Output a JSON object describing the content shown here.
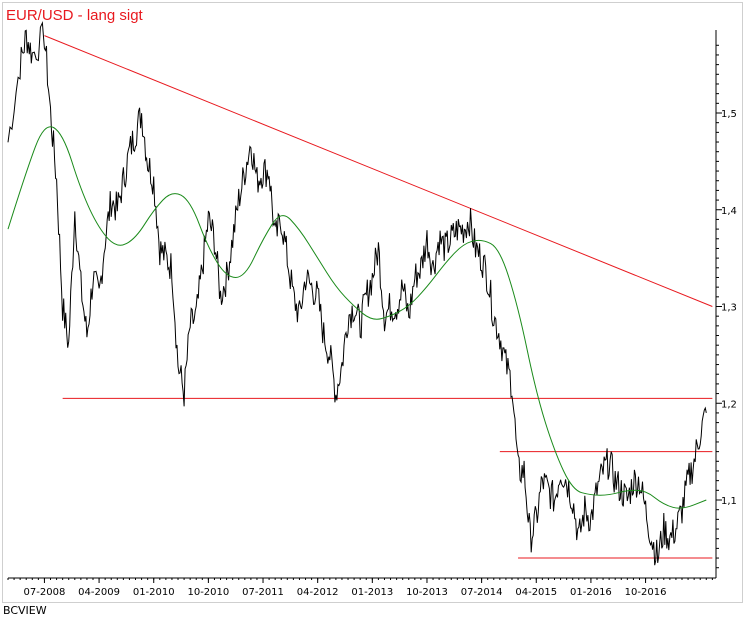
{
  "chart_data": {
    "type": "line",
    "title": "EUR/USD - lang sigt",
    "xlabel": "",
    "ylabel": "",
    "x_tick_labels": [
      "07-2008",
      "04-2009",
      "01-2010",
      "10-2010",
      "07-2011",
      "04-2012",
      "01-2013",
      "10-2013",
      "07-2014",
      "04-2015",
      "01-2016",
      "10-2016"
    ],
    "y_tick_labels": [
      "1,5",
      "1,4",
      "1,3",
      "1,2",
      "1,1"
    ],
    "y_tick_values": [
      1.5,
      1.4,
      1.3,
      1.2,
      1.1
    ],
    "ylim": [
      1.025,
      1.6
    ],
    "grid": false,
    "series": [
      {
        "role": "price",
        "color": "#000000",
        "points": [
          [
            "2008-01",
            1.47
          ],
          [
            "2008-03",
            1.55
          ],
          [
            "2008-04",
            1.58
          ],
          [
            "2008-05",
            1.56
          ],
          [
            "2008-07",
            1.58
          ],
          [
            "2008-08",
            1.5
          ],
          [
            "2008-09",
            1.43
          ],
          [
            "2008-10",
            1.3
          ],
          [
            "2008-11",
            1.26
          ],
          [
            "2008-12",
            1.4
          ],
          [
            "2009-01",
            1.32
          ],
          [
            "2009-02",
            1.27
          ],
          [
            "2009-03",
            1.33
          ],
          [
            "2009-04",
            1.31
          ],
          [
            "2009-05",
            1.37
          ],
          [
            "2009-06",
            1.41
          ],
          [
            "2009-07",
            1.4
          ],
          [
            "2009-08",
            1.43
          ],
          [
            "2009-09",
            1.46
          ],
          [
            "2009-10",
            1.48
          ],
          [
            "2009-11",
            1.5
          ],
          [
            "2009-12",
            1.45
          ],
          [
            "2010-01",
            1.43
          ],
          [
            "2010-02",
            1.36
          ],
          [
            "2010-03",
            1.35
          ],
          [
            "2010-04",
            1.34
          ],
          [
            "2010-05",
            1.24
          ],
          [
            "2010-06",
            1.21
          ],
          [
            "2010-07",
            1.28
          ],
          [
            "2010-08",
            1.29
          ],
          [
            "2010-09",
            1.34
          ],
          [
            "2010-10",
            1.39
          ],
          [
            "2010-11",
            1.37
          ],
          [
            "2010-12",
            1.31
          ],
          [
            "2011-01",
            1.33
          ],
          [
            "2011-02",
            1.37
          ],
          [
            "2011-03",
            1.41
          ],
          [
            "2011-04",
            1.44
          ],
          [
            "2011-05",
            1.47
          ],
          [
            "2011-06",
            1.43
          ],
          [
            "2011-07",
            1.44
          ],
          [
            "2011-08",
            1.44
          ],
          [
            "2011-09",
            1.37
          ],
          [
            "2011-10",
            1.39
          ],
          [
            "2011-11",
            1.35
          ],
          [
            "2011-12",
            1.31
          ],
          [
            "2012-01",
            1.29
          ],
          [
            "2012-02",
            1.33
          ],
          [
            "2012-03",
            1.32
          ],
          [
            "2012-04",
            1.31
          ],
          [
            "2012-05",
            1.27
          ],
          [
            "2012-06",
            1.25
          ],
          [
            "2012-07",
            1.21
          ],
          [
            "2012-08",
            1.24
          ],
          [
            "2012-09",
            1.29
          ],
          [
            "2012-10",
            1.3
          ],
          [
            "2012-11",
            1.28
          ],
          [
            "2012-12",
            1.31
          ],
          [
            "2013-01",
            1.33
          ],
          [
            "2013-02",
            1.36
          ],
          [
            "2013-03",
            1.29
          ],
          [
            "2013-04",
            1.3
          ],
          [
            "2013-05",
            1.3
          ],
          [
            "2013-06",
            1.32
          ],
          [
            "2013-07",
            1.29
          ],
          [
            "2013-08",
            1.33
          ],
          [
            "2013-09",
            1.34
          ],
          [
            "2013-10",
            1.37
          ],
          [
            "2013-11",
            1.34
          ],
          [
            "2013-12",
            1.37
          ],
          [
            "2014-01",
            1.36
          ],
          [
            "2014-02",
            1.37
          ],
          [
            "2014-03",
            1.38
          ],
          [
            "2014-04",
            1.38
          ],
          [
            "2014-05",
            1.39
          ],
          [
            "2014-06",
            1.36
          ],
          [
            "2014-07",
            1.35
          ],
          [
            "2014-08",
            1.33
          ],
          [
            "2014-09",
            1.29
          ],
          [
            "2014-10",
            1.27
          ],
          [
            "2014-11",
            1.24
          ],
          [
            "2014-12",
            1.22
          ],
          [
            "2015-01",
            1.13
          ],
          [
            "2015-02",
            1.13
          ],
          [
            "2015-03",
            1.06
          ],
          [
            "2015-04",
            1.08
          ],
          [
            "2015-05",
            1.12
          ],
          [
            "2015-06",
            1.11
          ],
          [
            "2015-07",
            1.1
          ],
          [
            "2015-08",
            1.13
          ],
          [
            "2015-09",
            1.12
          ],
          [
            "2015-10",
            1.1
          ],
          [
            "2015-11",
            1.06
          ],
          [
            "2015-12",
            1.09
          ],
          [
            "2016-01",
            1.08
          ],
          [
            "2016-02",
            1.11
          ],
          [
            "2016-03",
            1.13
          ],
          [
            "2016-04",
            1.14
          ],
          [
            "2016-05",
            1.12
          ],
          [
            "2016-06",
            1.11
          ],
          [
            "2016-07",
            1.1
          ],
          [
            "2016-08",
            1.12
          ],
          [
            "2016-09",
            1.12
          ],
          [
            "2016-10",
            1.09
          ],
          [
            "2016-11",
            1.06
          ],
          [
            "2016-12",
            1.04
          ],
          [
            "2017-01",
            1.07
          ],
          [
            "2017-02",
            1.06
          ],
          [
            "2017-03",
            1.07
          ],
          [
            "2017-04",
            1.09
          ],
          [
            "2017-05",
            1.12
          ],
          [
            "2017-06",
            1.14
          ],
          [
            "2017-07",
            1.17
          ],
          [
            "2017-08",
            1.19
          ]
        ]
      },
      {
        "role": "moving-average",
        "color": "#1a8a1a",
        "points": [
          [
            "2008-01",
            1.38
          ],
          [
            "2008-04",
            1.44
          ],
          [
            "2008-07",
            1.49
          ],
          [
            "2008-10",
            1.48
          ],
          [
            "2009-01",
            1.42
          ],
          [
            "2009-04",
            1.38
          ],
          [
            "2009-07",
            1.36
          ],
          [
            "2009-10",
            1.37
          ],
          [
            "2010-01",
            1.4
          ],
          [
            "2010-04",
            1.42
          ],
          [
            "2010-07",
            1.41
          ],
          [
            "2010-10",
            1.36
          ],
          [
            "2011-01",
            1.33
          ],
          [
            "2011-04",
            1.33
          ],
          [
            "2011-07",
            1.37
          ],
          [
            "2011-10",
            1.4
          ],
          [
            "2012-01",
            1.38
          ],
          [
            "2012-04",
            1.35
          ],
          [
            "2012-07",
            1.32
          ],
          [
            "2012-10",
            1.3
          ],
          [
            "2013-01",
            1.285
          ],
          [
            "2013-04",
            1.29
          ],
          [
            "2013-07",
            1.3
          ],
          [
            "2013-10",
            1.32
          ],
          [
            "2014-01",
            1.345
          ],
          [
            "2014-04",
            1.365
          ],
          [
            "2014-07",
            1.37
          ],
          [
            "2014-10",
            1.36
          ],
          [
            "2015-01",
            1.3
          ],
          [
            "2015-04",
            1.21
          ],
          [
            "2015-07",
            1.15
          ],
          [
            "2015-10",
            1.11
          ],
          [
            "2016-01",
            1.105
          ],
          [
            "2016-04",
            1.105
          ],
          [
            "2016-07",
            1.11
          ],
          [
            "2016-10",
            1.11
          ],
          [
            "2017-01",
            1.095
          ],
          [
            "2017-04",
            1.09
          ],
          [
            "2017-08",
            1.1
          ]
        ]
      }
    ],
    "reference_lines": [
      {
        "kind": "trendline",
        "color": "#e8191f",
        "from": [
          "2008-07",
          1.58
        ],
        "to": [
          "2017-09",
          1.3
        ]
      },
      {
        "kind": "horizontal",
        "color": "#e8191f",
        "y": 1.205,
        "from": "2008-10",
        "to": "2017-09"
      },
      {
        "kind": "horizontal",
        "color": "#e8191f",
        "y": 1.15,
        "from": "2014-10",
        "to": "2017-09"
      },
      {
        "kind": "horizontal",
        "color": "#e8191f",
        "y": 1.04,
        "from": "2015-01",
        "to": "2017-09"
      }
    ]
  },
  "footer": {
    "source": "BCVIEW"
  }
}
